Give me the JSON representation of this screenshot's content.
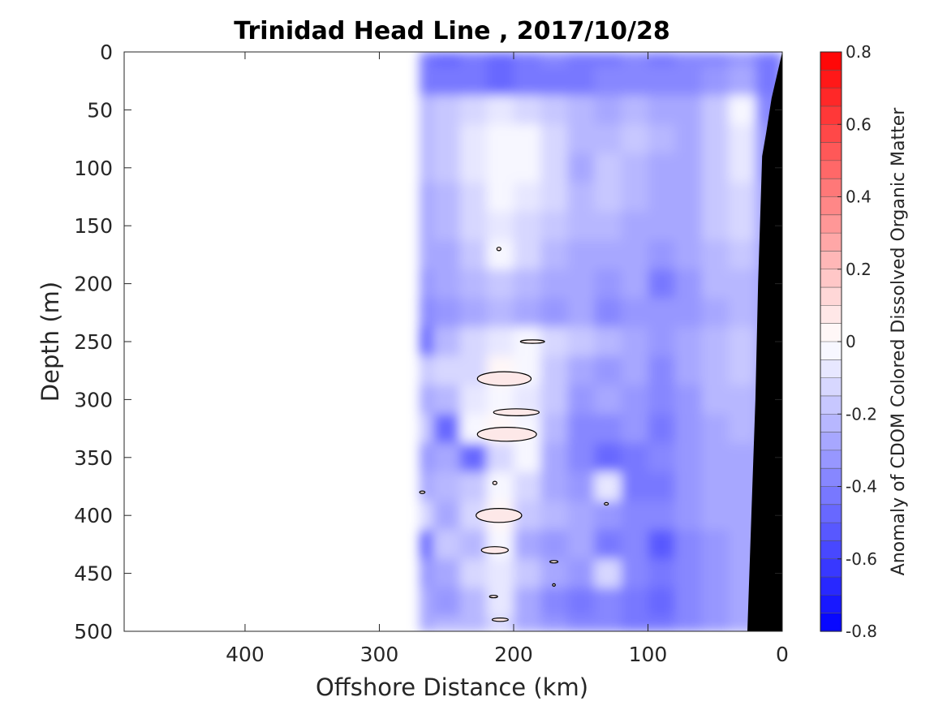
{
  "chart_data": {
    "type": "heatmap",
    "title": "Trinidad Head Line , 2017/10/28",
    "xlabel": "Offshore Distance (km)",
    "ylabel": "Depth (m)",
    "colorbar_label": "Anomaly of CDOM Colored Dissolved Organic Matter",
    "xlim": [
      490,
      0
    ],
    "ylim": [
      500,
      0
    ],
    "x_reversed": true,
    "y_reversed": true,
    "x_ticks": [
      400,
      300,
      200,
      100,
      0
    ],
    "y_ticks": [
      0,
      50,
      100,
      150,
      200,
      250,
      300,
      350,
      400,
      450,
      500
    ],
    "colorbar_range": [
      -0.8,
      0.8
    ],
    "colorbar_ticks": [
      0.8,
      0.6,
      0.4,
      0.2,
      0,
      -0.2,
      -0.4,
      -0.6,
      -0.8
    ],
    "colorbar_ticklabels": [
      "0.8",
      "0.6",
      "0.4",
      "0.2",
      "0",
      "-0.2",
      "-0.4",
      "-0.6",
      "-0.8"
    ],
    "colorbar_levels": 32,
    "colormap": {
      "negative": "#0000ff",
      "zero": "#ffffff",
      "positive": "#ff0000"
    },
    "grid": false,
    "data_extent_km": [
      0,
      270
    ],
    "bottom_mask_color": "#000000",
    "bottom_mask": [
      [
        0,
        0
      ],
      [
        8,
        40
      ],
      [
        12,
        70
      ],
      [
        15,
        90
      ],
      [
        18,
        200
      ],
      [
        20,
        300
      ],
      [
        23,
        400
      ],
      [
        26,
        500
      ]
    ],
    "x": [
      270,
      250,
      230,
      210,
      190,
      170,
      150,
      130,
      110,
      90,
      70,
      50,
      30,
      10
    ],
    "depths": [
      0,
      25,
      50,
      75,
      100,
      125,
      150,
      175,
      200,
      225,
      250,
      275,
      300,
      325,
      350,
      375,
      400,
      425,
      450,
      475,
      500
    ],
    "values": [
      [
        -0.45,
        -0.48,
        -0.45,
        -0.5,
        -0.45,
        -0.4,
        -0.45,
        -0.42,
        -0.4,
        -0.45,
        -0.4,
        -0.38,
        -0.35,
        -0.45
      ],
      [
        -0.45,
        -0.45,
        -0.45,
        -0.48,
        -0.42,
        -0.42,
        -0.42,
        -0.4,
        -0.4,
        -0.4,
        -0.38,
        -0.35,
        -0.3,
        -0.45
      ],
      [
        -0.25,
        -0.2,
        -0.15,
        -0.1,
        -0.12,
        -0.2,
        -0.25,
        -0.3,
        -0.25,
        -0.3,
        -0.3,
        -0.2,
        -0.05,
        -0.4
      ],
      [
        -0.25,
        -0.2,
        -0.1,
        -0.03,
        -0.05,
        -0.15,
        -0.25,
        -0.25,
        -0.2,
        -0.25,
        -0.3,
        -0.2,
        -0.08,
        -0.35
      ],
      [
        -0.25,
        -0.2,
        -0.1,
        -0.02,
        -0.03,
        -0.15,
        -0.28,
        -0.2,
        -0.25,
        -0.3,
        -0.3,
        -0.2,
        -0.1,
        -0.35
      ],
      [
        -0.3,
        -0.25,
        -0.15,
        -0.05,
        -0.08,
        -0.15,
        -0.25,
        -0.2,
        -0.25,
        -0.3,
        -0.28,
        -0.2,
        -0.12,
        -0.3
      ],
      [
        -0.3,
        -0.25,
        -0.15,
        -0.1,
        -0.12,
        -0.2,
        -0.25,
        -0.25,
        -0.3,
        -0.28,
        -0.3,
        -0.2,
        -0.15,
        -0.3
      ],
      [
        -0.3,
        -0.3,
        -0.2,
        -0.02,
        -0.15,
        -0.22,
        -0.28,
        -0.3,
        -0.3,
        -0.35,
        -0.3,
        -0.22,
        -0.18,
        -0.3
      ],
      [
        -0.35,
        -0.3,
        -0.25,
        -0.2,
        -0.25,
        -0.3,
        -0.3,
        -0.35,
        -0.3,
        -0.45,
        -0.35,
        -0.25,
        -0.22,
        -0.3
      ],
      [
        -0.38,
        -0.35,
        -0.3,
        -0.25,
        -0.3,
        -0.35,
        -0.3,
        -0.4,
        -0.35,
        -0.35,
        -0.35,
        -0.28,
        -0.25,
        -0.3
      ],
      [
        -0.5,
        -0.25,
        -0.15,
        -0.1,
        -0.02,
        -0.15,
        -0.2,
        -0.25,
        -0.3,
        -0.35,
        -0.3,
        -0.25,
        -0.2,
        -0.3
      ],
      [
        -0.2,
        -0.15,
        -0.12,
        0.02,
        -0.05,
        -0.2,
        -0.3,
        -0.35,
        -0.3,
        -0.4,
        -0.3,
        -0.25,
        -0.2,
        -0.3
      ],
      [
        -0.3,
        -0.25,
        -0.1,
        -0.05,
        -0.1,
        -0.2,
        -0.35,
        -0.3,
        -0.35,
        -0.4,
        -0.35,
        -0.25,
        -0.25,
        -0.3
      ],
      [
        -0.2,
        -0.5,
        -0.05,
        0.03,
        -0.02,
        -0.25,
        -0.4,
        -0.4,
        -0.35,
        -0.45,
        -0.35,
        -0.3,
        -0.25,
        -0.3
      ],
      [
        -0.35,
        -0.3,
        -0.5,
        -0.15,
        -0.05,
        -0.3,
        -0.4,
        -0.5,
        -0.45,
        -0.4,
        -0.35,
        -0.3,
        -0.3,
        -0.3
      ],
      [
        -0.3,
        -0.25,
        -0.2,
        -0.05,
        -0.15,
        -0.3,
        -0.35,
        -0.1,
        -0.45,
        -0.45,
        -0.35,
        -0.3,
        -0.3,
        -0.3
      ],
      [
        -0.15,
        -0.3,
        -0.15,
        0.03,
        -0.2,
        -0.25,
        -0.3,
        -0.35,
        -0.4,
        -0.4,
        -0.35,
        -0.3,
        -0.3,
        -0.3
      ],
      [
        -0.5,
        -0.2,
        -0.25,
        -0.05,
        -0.3,
        -0.35,
        -0.3,
        -0.45,
        -0.4,
        -0.55,
        -0.4,
        -0.35,
        -0.3,
        -0.3
      ],
      [
        -0.35,
        -0.3,
        -0.15,
        -0.1,
        -0.2,
        -0.3,
        -0.35,
        -0.15,
        -0.4,
        -0.45,
        -0.4,
        -0.35,
        -0.3,
        -0.3
      ],
      [
        -0.3,
        -0.35,
        -0.25,
        -0.1,
        -0.3,
        -0.4,
        -0.45,
        -0.4,
        -0.45,
        -0.5,
        -0.4,
        -0.35,
        -0.3,
        -0.3
      ],
      [
        -0.3,
        -0.25,
        -0.25,
        -0.15,
        -0.3,
        -0.35,
        -0.4,
        -0.4,
        -0.45,
        -0.45,
        -0.4,
        -0.35,
        -0.3,
        -0.3
      ]
    ],
    "zero_contours": [
      {
        "x": 186,
        "y": 250,
        "rx": 9,
        "ry": 1.5
      },
      {
        "x": 207,
        "y": 282,
        "rx": 20,
        "ry": 6
      },
      {
        "x": 198,
        "y": 311,
        "rx": 17,
        "ry": 3
      },
      {
        "x": 205,
        "y": 330,
        "rx": 22,
        "ry": 6
      },
      {
        "x": 211,
        "y": 400,
        "rx": 17,
        "ry": 6
      },
      {
        "x": 214,
        "y": 430,
        "rx": 10,
        "ry": 3
      },
      {
        "x": 210,
        "y": 490,
        "rx": 6,
        "ry": 1.5
      },
      {
        "x": 211,
        "y": 170,
        "rx": 1.5,
        "ry": 1.5
      },
      {
        "x": 214,
        "y": 372,
        "rx": 1.5,
        "ry": 1.5
      },
      {
        "x": 131,
        "y": 390,
        "rx": 1.5,
        "ry": 1
      },
      {
        "x": 170,
        "y": 440,
        "rx": 3,
        "ry": 1
      },
      {
        "x": 170,
        "y": 460,
        "rx": 1,
        "ry": 1
      },
      {
        "x": 215,
        "y": 470,
        "rx": 3,
        "ry": 1
      },
      {
        "x": 268,
        "y": 380,
        "rx": 2,
        "ry": 1
      }
    ]
  }
}
